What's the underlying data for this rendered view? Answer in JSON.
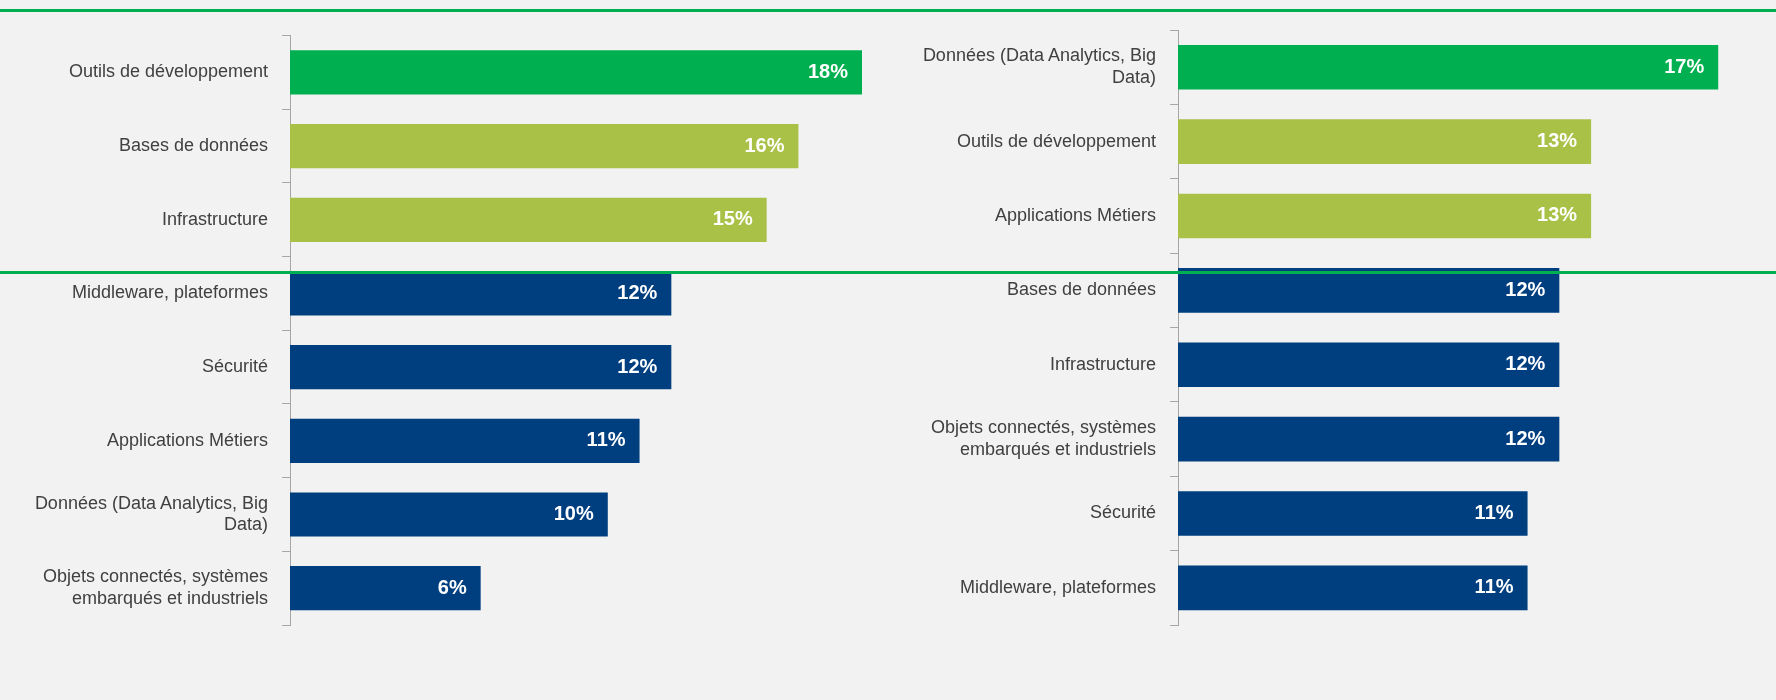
{
  "chart_data": [
    {
      "type": "bar",
      "orientation": "horizontal",
      "categories": [
        "Outils de développement",
        "Bases de données",
        "Infrastructure",
        "Middleware, plateformes",
        "Sécurité",
        "Applications Métiers",
        "Données (Data Analytics, Big Data)",
        "Objets connectés, systèmes embarqués et industriels"
      ],
      "values": [
        18,
        16,
        15,
        12,
        12,
        11,
        10,
        6
      ],
      "value_labels": [
        "18%",
        "16%",
        "15%",
        "12%",
        "12%",
        "11%",
        "10%",
        "6%"
      ],
      "colors": [
        "#00b050",
        "#a9c147",
        "#a9c147",
        "#003f7f",
        "#003f7f",
        "#003f7f",
        "#003f7f",
        "#003f7f"
      ],
      "tick_labels": "y",
      "legend": false
    },
    {
      "type": "bar",
      "orientation": "horizontal",
      "categories": [
        "Données (Data Analytics, Big Data)",
        "Outils de développement",
        "Applications Métiers",
        "Bases de données",
        "Infrastructure",
        "Objets connectés, systèmes embarqués et industriels",
        "Sécurité",
        "Middleware, plateformes"
      ],
      "values": [
        17,
        13,
        13,
        12,
        12,
        12,
        11,
        11
      ],
      "value_labels": [
        "17%",
        "13%",
        "13%",
        "12%",
        "12%",
        "12%",
        "11%",
        "11%"
      ],
      "colors": [
        "#00b050",
        "#a9c147",
        "#a9c147",
        "#003f7f",
        "#003f7f",
        "#003f7f",
        "#003f7f",
        "#003f7f"
      ],
      "tick_labels": "y",
      "legend": false
    }
  ]
}
